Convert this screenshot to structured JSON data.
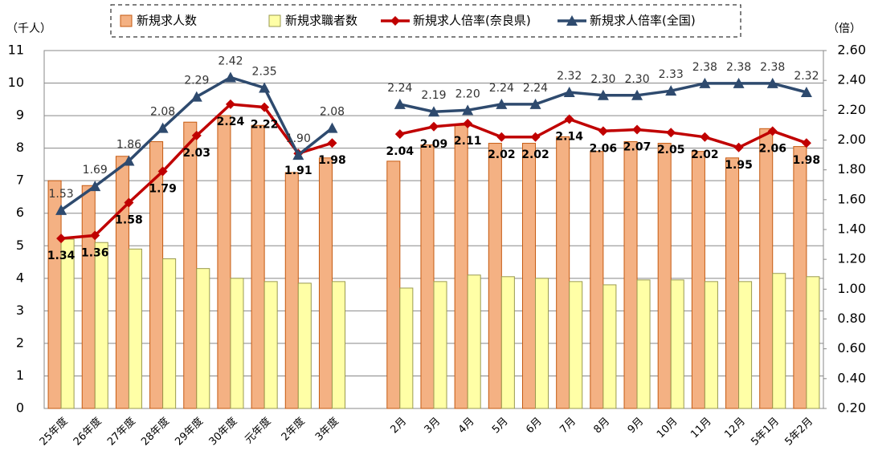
{
  "chart_data": {
    "type": "bar_line",
    "y_label": "（千人）",
    "y2_label": "（倍）",
    "legend": "top",
    "categories": [
      "25年度",
      "26年度",
      "27年度",
      "28年度",
      "29年度",
      "30年度",
      "元年度",
      "2年度",
      "3年度",
      null,
      "2月",
      "3月",
      "4月",
      "5月",
      "6月",
      "7月",
      "8月",
      "9月",
      "10月",
      "11月",
      "12月",
      "5年1月",
      "5年2月"
    ],
    "ylim": [
      0,
      11
    ],
    "yticks": [
      0,
      1,
      2,
      3,
      4,
      5,
      6,
      7,
      8,
      9,
      10,
      11
    ],
    "y2lim": [
      0.2,
      2.6
    ],
    "y2ticks": [
      {
        "value": 0.2,
        "label": "0.20"
      },
      {
        "value": 0.4,
        "label": "0.40"
      },
      {
        "value": 0.6,
        "label": "0.60"
      },
      {
        "value": 0.8,
        "label": "0.80"
      },
      {
        "value": 1.0,
        "label": "1.00"
      },
      {
        "value": 1.2,
        "label": "1.20"
      },
      {
        "value": 1.4,
        "label": "1.40"
      },
      {
        "value": 1.6,
        "label": "1.60"
      },
      {
        "value": 1.8,
        "label": "1.80"
      },
      {
        "value": 2.0,
        "label": "2.00"
      },
      {
        "value": 2.2,
        "label": "2.20"
      },
      {
        "value": 2.4,
        "label": "2.40"
      },
      {
        "value": 2.6,
        "label": "2.60"
      }
    ],
    "grid": true,
    "series": [
      {
        "name": "新規求人数",
        "type": "bar",
        "color": "#f4b183",
        "stroke": "#c55a11",
        "values": [
          7.0,
          6.85,
          7.75,
          8.2,
          8.8,
          9.0,
          8.7,
          7.25,
          7.7,
          null,
          7.6,
          8.1,
          8.7,
          8.15,
          8.15,
          8.35,
          7.9,
          8.2,
          8.15,
          7.9,
          7.7,
          8.6,
          8.05
        ]
      },
      {
        "name": "新規求職者数",
        "type": "bar",
        "color": "#ffffa6",
        "stroke": "#9a9a50",
        "values": [
          5.2,
          5.1,
          4.9,
          4.6,
          4.3,
          4.0,
          3.9,
          3.85,
          3.9,
          null,
          3.7,
          3.9,
          4.1,
          4.05,
          4.0,
          3.9,
          3.8,
          3.95,
          3.95,
          3.9,
          3.9,
          4.15,
          4.05
        ]
      },
      {
        "name": "新規求人倍率(奈良県)",
        "type": "line",
        "axis": "y2",
        "color": "#c00000",
        "values": [
          1.34,
          1.36,
          1.58,
          1.79,
          2.03,
          2.24,
          2.22,
          1.91,
          1.98,
          null,
          2.04,
          2.09,
          2.11,
          2.02,
          2.02,
          2.14,
          2.06,
          2.07,
          2.05,
          2.02,
          1.95,
          2.06,
          1.98
        ],
        "value_labels": [
          "1.34",
          "1.36",
          "1.58",
          "1.79",
          "2.03",
          "2.24",
          "2.22",
          "1.91",
          "1.98",
          null,
          "2.04",
          "2.09",
          "2.11",
          "2.02",
          "2.02",
          "2.14",
          "2.06",
          "2.07",
          "2.05",
          "2.02",
          "1.95",
          "2.06",
          "1.98"
        ]
      },
      {
        "name": "新規求人倍率(全国)",
        "type": "line",
        "axis": "y2",
        "color": "#2e4a6e",
        "values": [
          1.53,
          1.69,
          1.86,
          2.08,
          2.29,
          2.42,
          2.35,
          1.9,
          2.08,
          null,
          2.24,
          2.19,
          2.2,
          2.24,
          2.24,
          2.32,
          2.3,
          2.3,
          2.33,
          2.38,
          2.38,
          2.38,
          2.32
        ],
        "value_labels": [
          "1.53",
          "1.69",
          "1.86",
          "2.08",
          "2.29",
          "2.42",
          "2.35",
          "1.90",
          "2.08",
          null,
          "2.24",
          "2.19",
          "2.20",
          "2.24",
          "2.24",
          "2.32",
          "2.30",
          "2.30",
          "2.33",
          "2.38",
          "2.38",
          "2.38",
          "2.32"
        ]
      }
    ]
  }
}
